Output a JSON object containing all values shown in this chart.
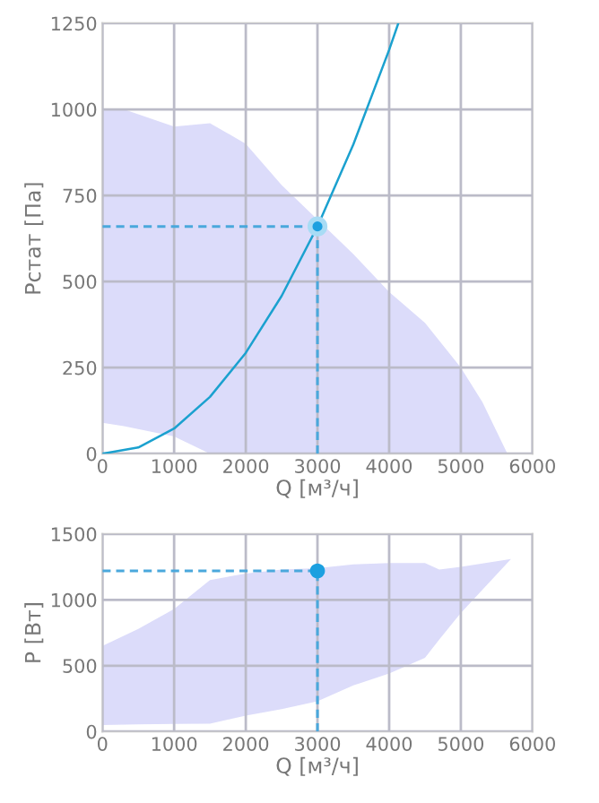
{
  "chart_data": [
    {
      "type": "line",
      "xlabel": "Q [м³/ч]",
      "ylabel": "Pстат [Па]",
      "xlim": [
        0,
        6000
      ],
      "ylim": [
        0,
        1250
      ],
      "xticks": [
        0,
        1000,
        2000,
        3000,
        4000,
        5000,
        6000
      ],
      "yticks": [
        0,
        250,
        500,
        750,
        1000,
        1250
      ],
      "grid": true,
      "series": [
        {
          "type": "area",
          "color": "#dcdcfa",
          "x": [
            0,
            300,
            1000,
            1500,
            2000,
            2500,
            3000,
            3500,
            4000,
            4500,
            5000,
            5300,
            5650
          ],
          "values": [
            null,
            null,
            null,
            null,
            null,
            null,
            null,
            null,
            null,
            null,
            null,
            null,
            null
          ],
          "upper": [
            1000,
            1000,
            950,
            960,
            900,
            780,
            680,
            580,
            470,
            380,
            250,
            150,
            0
          ],
          "lower": [
            90,
            80,
            50,
            0,
            0,
            0,
            0,
            0,
            0,
            0,
            0,
            0,
            0
          ]
        },
        {
          "type": "line",
          "color": "#1ba1cf",
          "x": [
            0,
            500,
            1000,
            1500,
            2000,
            2500,
            3000,
            3500,
            4000,
            4128
          ],
          "values": [
            0,
            18,
            73,
            165,
            293,
            458,
            660,
            898,
            1173,
            1250
          ]
        },
        {
          "type": "line",
          "color": "#4aa8dc",
          "line_style": "dashed",
          "x": [
            0,
            3000
          ],
          "values": [
            660,
            660
          ]
        },
        {
          "type": "line",
          "color": "#4aa8dc",
          "line_style": "dashed",
          "x": [
            3000,
            3000
          ],
          "values": [
            0,
            660
          ]
        },
        {
          "type": "scatter",
          "color": "#1ca0e0",
          "marker": "circle",
          "x": [
            3000
          ],
          "values": [
            660
          ]
        }
      ]
    },
    {
      "type": "line",
      "xlabel": "Q [м³/ч]",
      "ylabel": "P [Вт]",
      "xlim": [
        0,
        6000
      ],
      "ylim": [
        0,
        1500
      ],
      "xticks": [
        0,
        1000,
        2000,
        3000,
        4000,
        5000,
        6000
      ],
      "yticks": [
        0,
        500,
        1000,
        1500
      ],
      "grid": true,
      "series": [
        {
          "type": "area",
          "color": "#dcdcfa",
          "x": [
            0,
            500,
            1000,
            1500,
            2000,
            2500,
            3000,
            3500,
            4000,
            4500,
            4700,
            5000,
            5700
          ],
          "values": [
            null,
            null,
            null,
            null,
            null,
            null,
            null,
            null,
            null,
            null,
            null,
            null,
            null
          ],
          "upper": [
            650,
            780,
            930,
            1150,
            1200,
            1230,
            1240,
            1270,
            1280,
            1280,
            1230,
            1250,
            1310
          ],
          "lower": [
            50,
            55,
            58,
            60,
            120,
            170,
            230,
            350,
            440,
            560,
            700,
            900,
            1310
          ]
        },
        {
          "type": "line",
          "color": "#4aa8dc",
          "line_style": "dashed",
          "x": [
            0,
            3000
          ],
          "values": [
            1220,
            1220
          ]
        },
        {
          "type": "line",
          "color": "#4aa8dc",
          "line_style": "dashed",
          "x": [
            3000,
            3000
          ],
          "values": [
            0,
            1220
          ]
        },
        {
          "type": "scatter",
          "color": "#1ca0e0",
          "marker": "circle",
          "x": [
            3000
          ],
          "values": [
            1220
          ]
        }
      ]
    }
  ]
}
